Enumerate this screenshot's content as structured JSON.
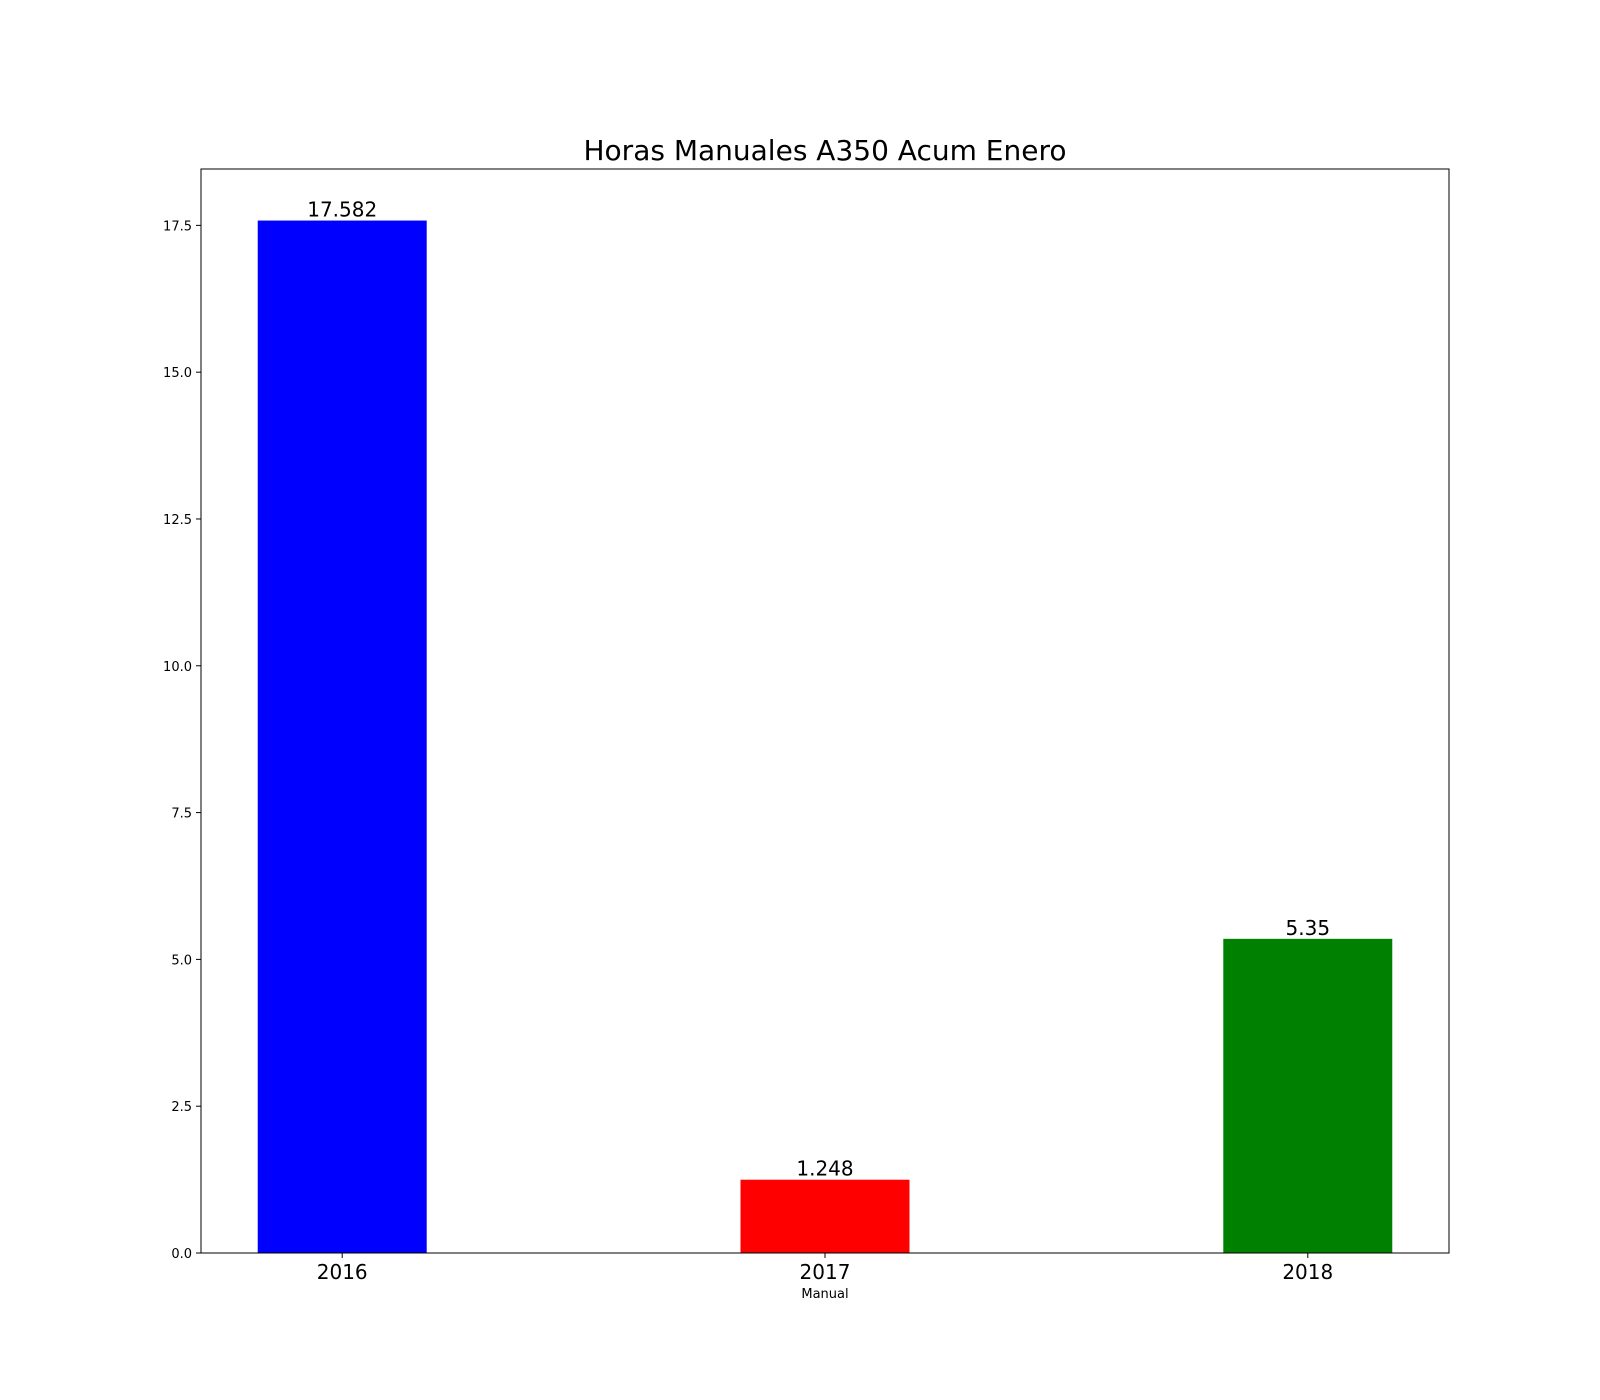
{
  "chart_data": {
    "type": "bar",
    "title": "Horas Manuales A350 Acum Enero",
    "xlabel": "Manual",
    "ylabel": "",
    "categories": [
      "2016",
      "2017",
      "2018"
    ],
    "values": [
      17.582,
      1.248,
      5.35
    ],
    "value_labels": [
      "17.582",
      "1.248",
      "5.35"
    ],
    "colors": [
      "#0000ff",
      "#ff0000",
      "#008000"
    ],
    "ylim": [
      0,
      18.46
    ],
    "yticks": [
      0,
      2.5,
      5,
      7.5,
      10,
      12.5,
      15,
      17.5
    ],
    "ytick_labels": [
      "0.0",
      "2.5",
      "5.0",
      "7.5",
      "10.0",
      "12.5",
      "15.0",
      "17.5"
    ],
    "grid": false,
    "legend": "none"
  }
}
